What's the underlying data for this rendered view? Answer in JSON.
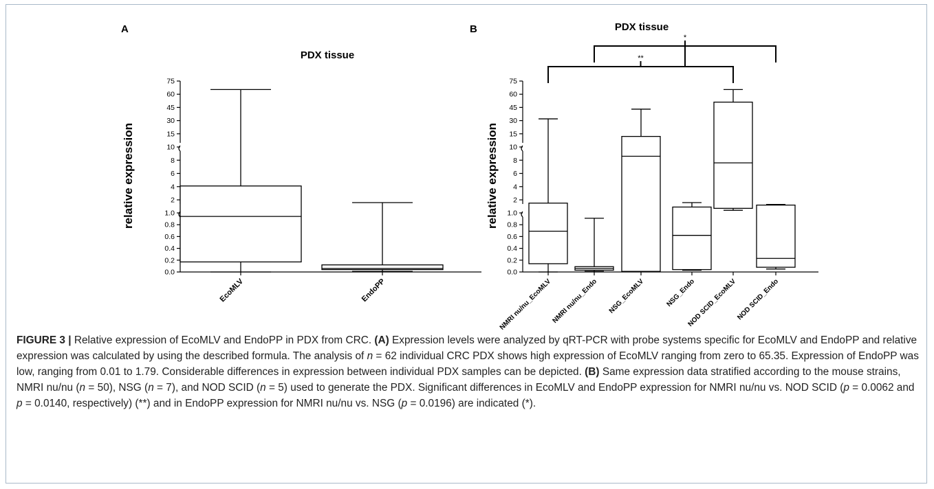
{
  "chart_data": [
    {
      "panel": "A",
      "type": "box",
      "title": "PDX tissue",
      "ylabel": "relative expression",
      "y_scale": "segmented (broken axis)",
      "y_ticks": [
        "0.0",
        "0.2",
        "0.4",
        "0.6",
        "0.8",
        "1.0",
        "2",
        "4",
        "6",
        "8",
        "10",
        "15",
        "30",
        "45",
        "60",
        "75"
      ],
      "categories": [
        "EcoMLV",
        "EndoPP"
      ],
      "boxes": [
        {
          "name": "EcoMLV",
          "min": 0.0,
          "q1": 0.17,
          "median": 0.94,
          "q3": 4.1,
          "max": 65.35
        },
        {
          "name": "EndoPP",
          "min": 0.01,
          "q1": 0.04,
          "median": 0.06,
          "q3": 0.12,
          "max": 1.79
        }
      ]
    },
    {
      "panel": "B",
      "type": "box",
      "title": "PDX tissue",
      "ylabel": "relative expression",
      "y_scale": "segmented (broken axis)",
      "y_ticks": [
        "0.0",
        "0.2",
        "0.4",
        "0.6",
        "0.8",
        "1.0",
        "2",
        "4",
        "6",
        "8",
        "10",
        "15",
        "30",
        "45",
        "60",
        "75"
      ],
      "categories": [
        "NMRI nu/nu_EcoMLV",
        "NMRI nu/nu_Endo",
        "NSG_EcoMLV",
        "NSG_Endo",
        "NOD SCID_EcoMLV",
        "NOD SCID_Endo"
      ],
      "boxes": [
        {
          "name": "NMRI nu/nu_EcoMLV",
          "min": 0.0,
          "q1": 0.14,
          "median": 0.69,
          "q3": 1.75,
          "max": 32
        },
        {
          "name": "NMRI nu/nu_Endo",
          "min": 0.01,
          "q1": 0.03,
          "median": 0.06,
          "q3": 0.09,
          "max": 0.91
        },
        {
          "name": "NSG_EcoMLV",
          "min": 0.01,
          "q1": 0.01,
          "median": 8.6,
          "q3": 14,
          "max": 43
        },
        {
          "name": "NSG_Endo",
          "min": 0.03,
          "q1": 0.04,
          "median": 0.62,
          "q3": 1.45,
          "max": 1.79
        },
        {
          "name": "NOD SCID_EcoMLV",
          "min": 1.2,
          "q1": 1.35,
          "median": 7.6,
          "q3": 51,
          "max": 65.35
        },
        {
          "name": "NOD SCID_Endo",
          "min": 0.05,
          "q1": 0.08,
          "median": 0.23,
          "q3": 1.6,
          "max": 1.65
        }
      ],
      "significance": [
        {
          "from": "NMRI nu/nu_EcoMLV",
          "to": "NOD SCID_EcoMLV",
          "label": "**"
        },
        {
          "from": "NMRI nu/nu_Endo",
          "to": "NOD SCID_Endo",
          "label": "*"
        }
      ]
    }
  ],
  "panel_labels": {
    "a": "A",
    "b": "B"
  },
  "caption": {
    "lead": "FIGURE 3 |",
    "intro": " Relative expression of EcoMLV and EndoPP in PDX from CRC. ",
    "a_label": "(A)",
    "a_text": " Expression levels were analyzed by qRT-PCR with probe systems specific for EcoMLV and EndoPP and relative expression was calculated by using the described formula. The analysis of ",
    "a_n": "n",
    "a_text2": " = 62 individual CRC PDX shows high expression of EcoMLV ranging from zero to 65.35. Expression of EndoPP was low, ranging from 0.01 to 1.79. Considerable differences in expression between individual PDX samples can be depicted. ",
    "b_label": "(B)",
    "b_text": " Same expression data stratified according to the mouse strains, NMRI nu/nu (",
    "b_n1": "n",
    "b_text2": " = 50), NSG (",
    "b_n2": "n",
    "b_text3": " = 7), and NOD SCID (",
    "b_n3": "n",
    "b_text4": " = 5) used to generate the PDX. Significant differences in EcoMLV and EndoPP expression for NMRI nu/nu vs. NOD SCID (",
    "b_p1": "p",
    "b_text5": " = 0.0062 and ",
    "b_p2": "p",
    "b_text6": " = 0.0140, respectively) (**) and in EndoPP expression for NMRI nu/nu vs. NSG (",
    "b_p3": "p",
    "b_text7": " = 0.0196) are indicated (*)."
  }
}
